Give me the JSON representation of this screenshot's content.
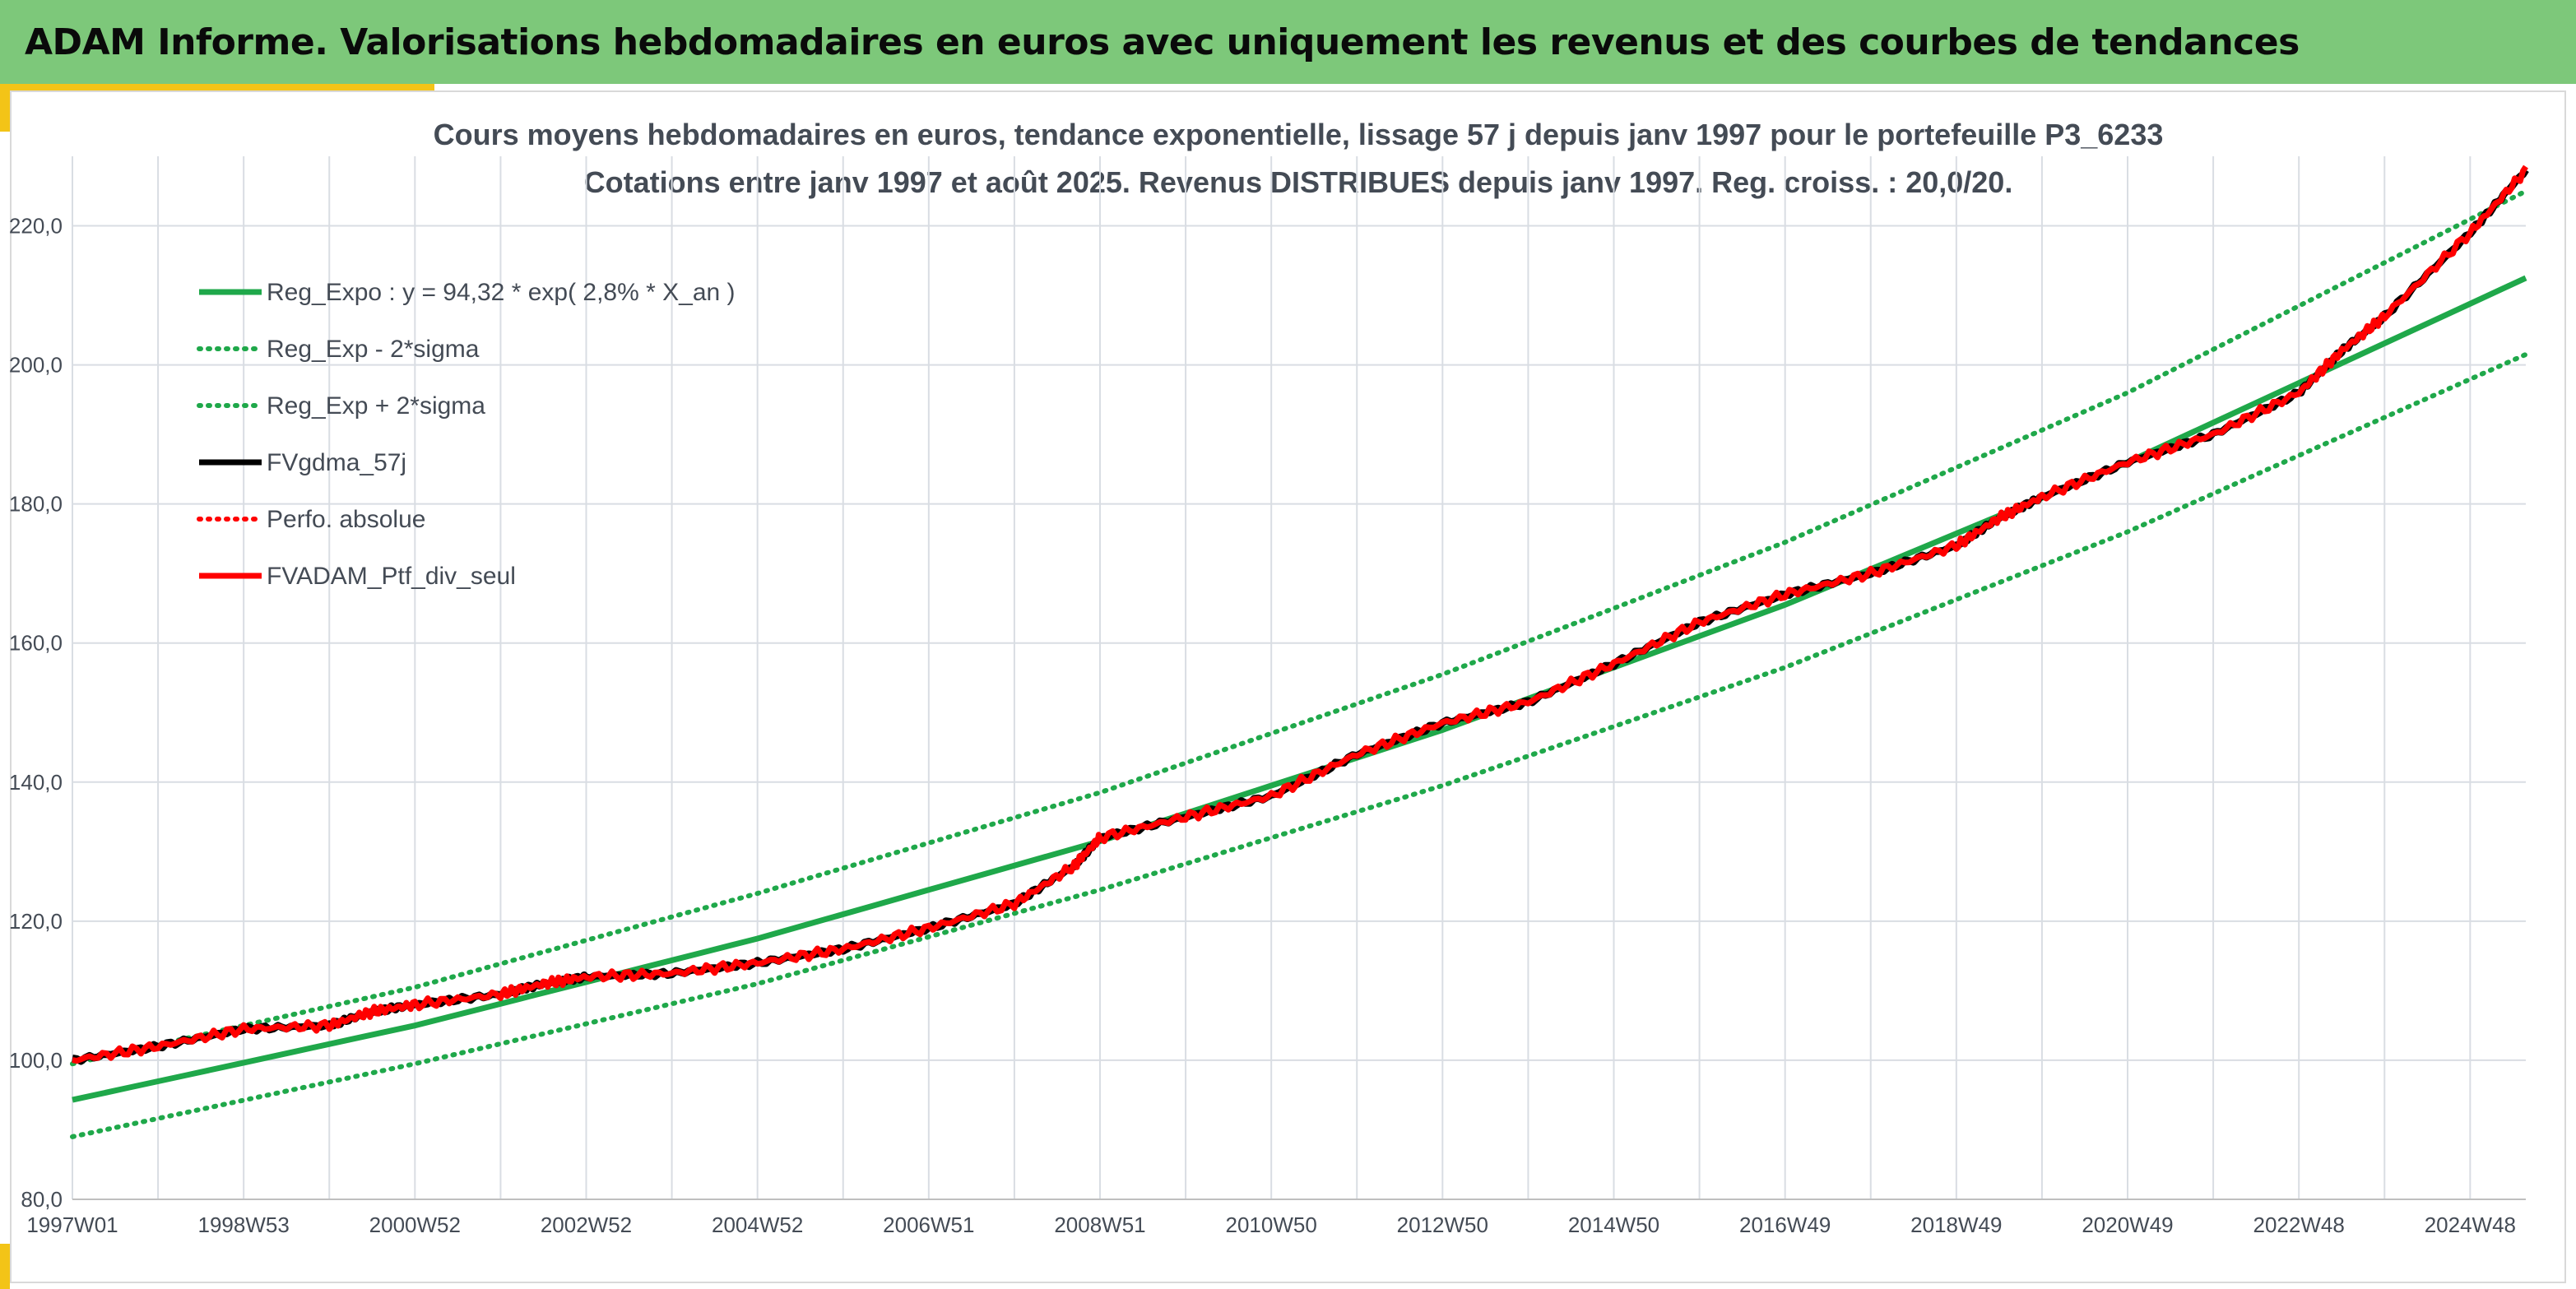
{
  "header": {
    "title": "ADAM Informe. Valorisations hebdomadaires en euros avec uniquement les revenus et des courbes de tendances"
  },
  "colors": {
    "header_bg": "#7dc87a",
    "accent": "#f3c417",
    "trend_green": "#1fa84a",
    "black_series": "#000000",
    "red_series": "#ff0000",
    "grid": "#d9dde3",
    "text": "#444b55"
  },
  "chart_data": {
    "type": "line",
    "title": "Cours moyens hebdomadaires en euros, tendance exponentielle, lissage 57 j depuis janv 1997 pour le portefeuille P3_6233",
    "subtitle": "Cotations entre janv 1997 et août 2025. Revenus DISTRIBUES depuis janv 1997. Reg. croiss. : 20,0/20.",
    "xlabel": "",
    "ylabel": "",
    "x_range": [
      1997.0,
      2025.65
    ],
    "ylim": [
      80,
      230
    ],
    "y_ticks": [
      80,
      100,
      120,
      140,
      160,
      180,
      200,
      220
    ],
    "y_tick_labels": [
      "80,0",
      "100,0",
      "120,0",
      "140,0",
      "160,0",
      "180,0",
      "200,0",
      "220,0"
    ],
    "x_tick_labels": [
      "1997W01",
      "1998W53",
      "2000W52",
      "2002W52",
      "2004W52",
      "2006W51",
      "2008W51",
      "2010W50",
      "2012W50",
      "2014W50",
      "2016W49",
      "2018W49",
      "2020W49",
      "2022W48",
      "2024W48"
    ],
    "x_ticks": [
      1997.0,
      1999.0,
      2001.0,
      2003.0,
      2005.0,
      2007.0,
      2009.0,
      2011.0,
      2013.0,
      2015.0,
      2017.0,
      2019.0,
      2021.0,
      2023.0,
      2025.0
    ],
    "grid": true,
    "legend_position": "top-left",
    "legend": [
      {
        "label": "Reg_Expo : y = 94,32 * exp( 2,8% *  X_an )",
        "color": "#1fa84a",
        "style": "solid"
      },
      {
        "label": "Reg_Exp - 2*sigma",
        "color": "#1fa84a",
        "style": "dotted"
      },
      {
        "label": "Reg_Exp + 2*sigma",
        "color": "#1fa84a",
        "style": "dotted"
      },
      {
        "label": "FVgdma_57j",
        "color": "#000000",
        "style": "solid"
      },
      {
        "label": "Perfo. absolue",
        "color": "#ff0000",
        "style": "dotted"
      },
      {
        "label": "FVADAM_Ptf_div_seul",
        "color": "#ff0000",
        "style": "solid"
      }
    ],
    "series": [
      {
        "name": "Reg_Expo : y = 94,32 * exp( 2,8% *  X_an )",
        "x": [
          1997.0,
          2001.0,
          2005.0,
          2009.0,
          2013.0,
          2017.0,
          2021.0,
          2025.65
        ],
        "y": [
          94.3,
          105.0,
          117.5,
          131.5,
          147.5,
          165.5,
          186.0,
          212.5
        ]
      },
      {
        "name": "Reg_Exp - 2*sigma",
        "x": [
          1997.0,
          2001.0,
          2005.0,
          2009.0,
          2013.0,
          2017.0,
          2021.0,
          2025.65
        ],
        "y": [
          89.0,
          99.5,
          111.0,
          124.5,
          139.5,
          156.5,
          176.0,
          201.5
        ]
      },
      {
        "name": "Reg_Exp + 2*sigma",
        "x": [
          1997.0,
          2001.0,
          2005.0,
          2009.0,
          2013.0,
          2017.0,
          2021.0,
          2025.65
        ],
        "y": [
          99.5,
          110.5,
          124.0,
          138.5,
          155.5,
          174.5,
          196.0,
          225.0
        ]
      },
      {
        "name": "FVgdma_57j",
        "x": [
          1997.0,
          1998.0,
          1999.0,
          2000.0,
          2000.5,
          2001.0,
          2002.0,
          2002.5,
          2003.0,
          2004.0,
          2005.0,
          2006.0,
          2007.0,
          2008.0,
          2008.7,
          2009.0,
          2010.0,
          2011.0,
          2012.0,
          2013.0,
          2014.0,
          2015.0,
          2016.0,
          2017.0,
          2018.0,
          2019.0,
          2019.5,
          2020.0,
          2021.0,
          2022.0,
          2023.0,
          2023.5,
          2024.0,
          2025.0,
          2025.65
        ],
        "y": [
          100.0,
          102.0,
          104.5,
          105.0,
          107.0,
          108.0,
          109.5,
          111.0,
          112.0,
          112.5,
          114.0,
          116.0,
          119.0,
          122.5,
          128.0,
          132.0,
          135.0,
          138.0,
          144.0,
          148.5,
          151.5,
          157.0,
          163.0,
          167.0,
          170.0,
          174.0,
          178.0,
          181.0,
          186.0,
          190.0,
          196.0,
          202.0,
          207.0,
          219.0,
          228.0
        ]
      },
      {
        "name": "FVADAM_Ptf_div_seul",
        "x": [
          1997.0,
          1998.0,
          1999.0,
          2000.0,
          2000.5,
          2001.0,
          2002.0,
          2002.5,
          2003.0,
          2004.0,
          2005.0,
          2006.0,
          2007.0,
          2008.0,
          2008.7,
          2009.0,
          2010.0,
          2011.0,
          2012.0,
          2013.0,
          2014.0,
          2015.0,
          2016.0,
          2017.0,
          2018.0,
          2019.0,
          2019.5,
          2020.0,
          2021.0,
          2022.0,
          2023.0,
          2023.5,
          2024.0,
          2025.0,
          2025.65
        ],
        "y": [
          100.0,
          102.0,
          104.5,
          105.0,
          107.0,
          108.0,
          109.5,
          111.0,
          112.0,
          112.5,
          114.0,
          116.0,
          119.0,
          122.5,
          128.0,
          132.0,
          135.0,
          138.0,
          144.0,
          148.5,
          151.5,
          157.0,
          163.0,
          167.0,
          170.0,
          174.0,
          178.0,
          181.0,
          186.0,
          190.0,
          196.0,
          202.0,
          207.0,
          219.0,
          228.0
        ]
      }
    ]
  }
}
